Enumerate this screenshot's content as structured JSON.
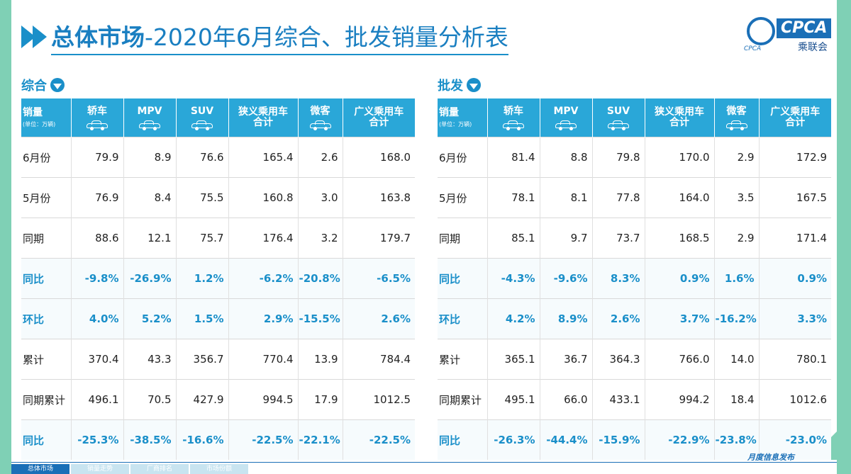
{
  "header": {
    "title_bold": "总体市场",
    "title_rest": "-2020年6月综合、批发销量分析表"
  },
  "logo": {
    "text": "CPCA",
    "cn": "乘联会",
    "small": "CPCA"
  },
  "columns": {
    "first_label": "销量",
    "first_unit": "(单位：万辆)",
    "cols": [
      {
        "l1": "轿车",
        "l2": ""
      },
      {
        "l1": "MPV",
        "l2": ""
      },
      {
        "l1": "SUV",
        "l2": ""
      },
      {
        "l1": "狭义乘用车",
        "l2": "合计"
      },
      {
        "l1": "微客",
        "l2": ""
      },
      {
        "l1": "广义乘用车",
        "l2": "合计"
      }
    ]
  },
  "row_labels": [
    "6月份",
    "5月份",
    "同期",
    "同比",
    "环比",
    "累计",
    "同期累计",
    "同比"
  ],
  "sections": [
    {
      "title": "综合",
      "rows": [
        [
          "79.9",
          "8.9",
          "76.6",
          "165.4",
          "2.6",
          "168.0"
        ],
        [
          "76.9",
          "8.4",
          "75.5",
          "160.8",
          "3.0",
          "163.8"
        ],
        [
          "88.6",
          "12.1",
          "75.7",
          "176.4",
          "3.2",
          "179.7"
        ],
        [
          "-9.8%",
          "-26.9%",
          "1.2%",
          "-6.2%",
          "-20.8%",
          "-6.5%"
        ],
        [
          "4.0%",
          "5.2%",
          "1.5%",
          "2.9%",
          "-15.5%",
          "2.6%"
        ],
        [
          "370.4",
          "43.3",
          "356.7",
          "770.4",
          "13.9",
          "784.4"
        ],
        [
          "496.1",
          "70.5",
          "427.9",
          "994.5",
          "17.9",
          "1012.5"
        ],
        [
          "-25.3%",
          "-38.5%",
          "-16.6%",
          "-22.5%",
          "-22.1%",
          "-22.5%"
        ]
      ]
    },
    {
      "title": "批发",
      "rows": [
        [
          "81.4",
          "8.8",
          "79.8",
          "170.0",
          "2.9",
          "172.9"
        ],
        [
          "78.1",
          "8.1",
          "77.8",
          "164.0",
          "3.5",
          "167.5"
        ],
        [
          "85.1",
          "9.7",
          "73.7",
          "168.5",
          "2.9",
          "171.4"
        ],
        [
          "-4.3%",
          "-9.6%",
          "8.3%",
          "0.9%",
          "1.6%",
          "0.9%"
        ],
        [
          "4.2%",
          "8.9%",
          "2.6%",
          "3.7%",
          "-16.2%",
          "3.3%"
        ],
        [
          "365.1",
          "36.7",
          "364.3",
          "766.0",
          "14.0",
          "780.1"
        ],
        [
          "495.1",
          "66.0",
          "433.1",
          "994.2",
          "18.4",
          "1012.6"
        ],
        [
          "-26.3%",
          "-44.4%",
          "-15.9%",
          "-22.9%",
          "-23.8%",
          "-23.0%"
        ]
      ]
    }
  ],
  "highlight_rows": [
    3,
    4,
    7
  ],
  "footer": {
    "tabs": [
      "总体市场",
      "销量走势",
      "厂商排名",
      "市场份额"
    ],
    "release": "月度信息发布"
  },
  "colors": {
    "accent": "#1a8fc9",
    "header_bg": "#2aa7d8",
    "stripe": "#7fd0b5"
  }
}
